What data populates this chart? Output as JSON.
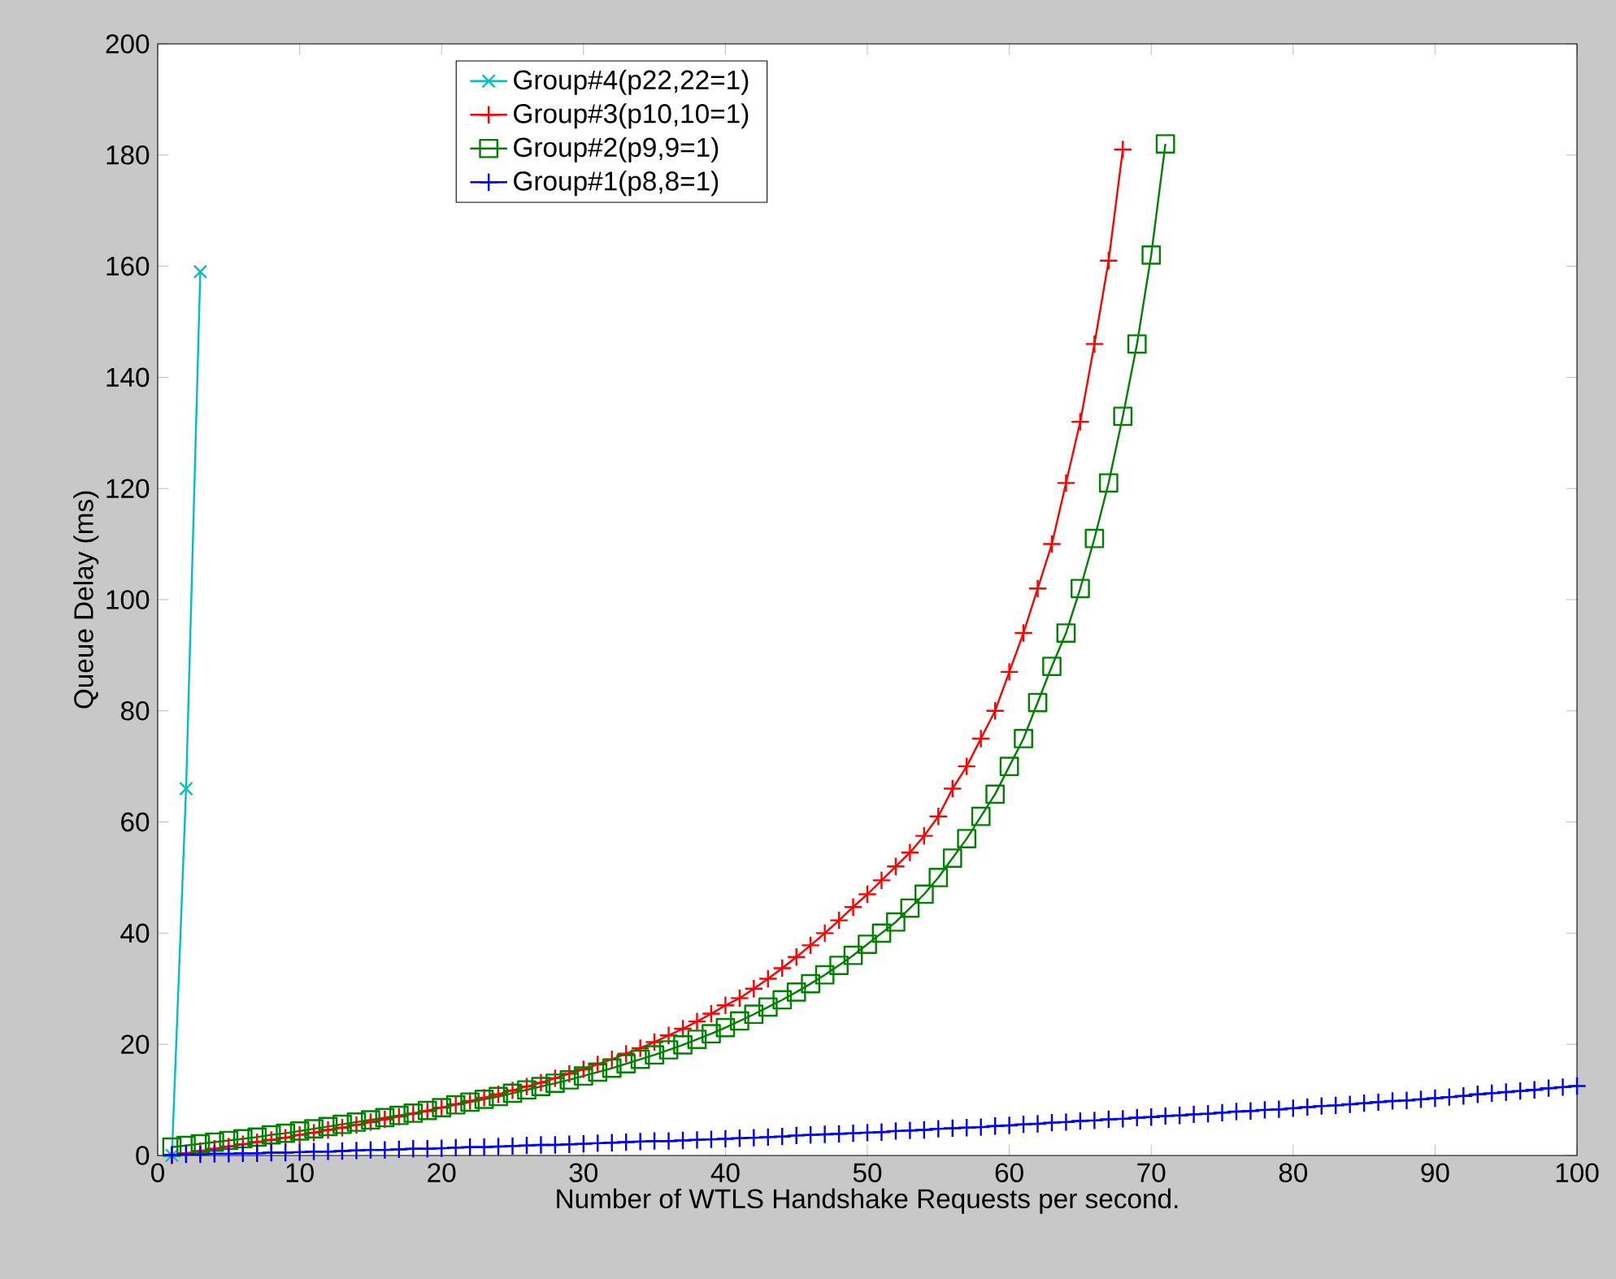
{
  "chart_data": {
    "type": "line",
    "xlabel": "Number of WTLS Handshake Requests per second.",
    "ylabel": "Queue Delay (ms)",
    "xlim": [
      0,
      100
    ],
    "ylim": [
      0,
      200
    ],
    "xticks": [
      0,
      10,
      20,
      30,
      40,
      50,
      60,
      70,
      80,
      90,
      100
    ],
    "yticks": [
      0,
      20,
      40,
      60,
      80,
      100,
      120,
      140,
      160,
      180,
      200
    ],
    "grid": false,
    "legend": "top",
    "line_style": "solid",
    "series": [
      {
        "name": "Group#4(p22,22=1)",
        "color": "#00bfbf",
        "marker": "x",
        "x": [
          1,
          2,
          3
        ],
        "values": [
          0,
          66,
          159
        ]
      },
      {
        "name": "Group#3(p10,10=1)",
        "color": "#ff0000",
        "marker": "cross",
        "x": [
          1,
          2,
          3,
          4,
          5,
          6,
          7,
          8,
          9,
          10,
          11,
          12,
          13,
          14,
          15,
          16,
          17,
          18,
          19,
          20,
          21,
          22,
          23,
          24,
          25,
          26,
          27,
          28,
          29,
          30,
          31,
          32,
          33,
          34,
          35,
          36,
          37,
          38,
          39,
          40,
          41,
          42,
          43,
          44,
          45,
          46,
          47,
          48,
          49,
          50,
          51,
          52,
          53,
          54,
          55,
          56,
          57,
          58,
          59,
          60,
          61,
          62,
          63,
          64,
          65,
          66,
          67,
          68
        ],
        "values": [
          0,
          0.4,
          0.8,
          1.2,
          1.6,
          2,
          2.4,
          2.8,
          3.2,
          3.7,
          4.1,
          4.6,
          5,
          5.5,
          6,
          6.5,
          7,
          7.5,
          8,
          8.6,
          9.2,
          9.8,
          10.4,
          11,
          11.7,
          12.4,
          13.1,
          13.9,
          14.7,
          15.5,
          16.4,
          17.3,
          18.3,
          19.3,
          20.4,
          21.6,
          22.8,
          24.1,
          25.5,
          27,
          28.3,
          30,
          31.8,
          33.7,
          35.7,
          37.8,
          40,
          42.3,
          44.7,
          47,
          49.5,
          52,
          54.5,
          57.5,
          61,
          66,
          70,
          75,
          80,
          87,
          94,
          102,
          110,
          121,
          132,
          146,
          161,
          181
        ]
      },
      {
        "name": "Group#2(p9,9=1)",
        "color": "#008000",
        "marker": "square",
        "x": [
          1,
          2,
          3,
          4,
          5,
          6,
          7,
          8,
          9,
          10,
          11,
          12,
          13,
          14,
          15,
          16,
          17,
          18,
          19,
          20,
          21,
          22,
          23,
          24,
          25,
          26,
          27,
          28,
          29,
          30,
          31,
          32,
          33,
          34,
          35,
          36,
          37,
          38,
          39,
          40,
          41,
          42,
          43,
          44,
          45,
          46,
          47,
          48,
          49,
          50,
          51,
          52,
          53,
          54,
          55,
          56,
          57,
          58,
          59,
          60,
          61,
          62,
          63,
          64,
          65,
          66,
          67,
          68,
          69,
          70,
          71
        ],
        "values": [
          1.5,
          1.8,
          2.1,
          2.4,
          2.7,
          3,
          3.3,
          3.7,
          4,
          4.4,
          4.8,
          5.2,
          5.6,
          6,
          6.4,
          6.8,
          7.2,
          7.6,
          8.1,
          8.6,
          9.1,
          9.6,
          10.1,
          10.6,
          11.2,
          11.8,
          12.4,
          13,
          13.6,
          14.3,
          15,
          15.7,
          16.5,
          17.3,
          18.1,
          19,
          19.9,
          20.9,
          21.9,
          23,
          24.2,
          25.4,
          26.7,
          28,
          29.4,
          30.9,
          32.5,
          34.2,
          36,
          38,
          40,
          42,
          44.5,
          47,
          50,
          53.5,
          57,
          61,
          65,
          70,
          75,
          81.5,
          88,
          94,
          102,
          111,
          121,
          133,
          146,
          162,
          182
        ]
      },
      {
        "name": "Group#1(p8,8=1)",
        "color": "#0000ff",
        "marker": "cross",
        "x": [
          1,
          2,
          3,
          4,
          5,
          6,
          7,
          8,
          9,
          10,
          11,
          12,
          13,
          14,
          15,
          16,
          17,
          18,
          19,
          20,
          21,
          22,
          23,
          24,
          25,
          26,
          27,
          28,
          29,
          30,
          31,
          32,
          33,
          34,
          35,
          36,
          37,
          38,
          39,
          40,
          41,
          42,
          43,
          44,
          45,
          46,
          47,
          48,
          49,
          50,
          51,
          52,
          53,
          54,
          55,
          56,
          57,
          58,
          59,
          60,
          61,
          62,
          63,
          64,
          65,
          66,
          67,
          68,
          69,
          70,
          71,
          72,
          73,
          74,
          75,
          76,
          77,
          78,
          79,
          80,
          81,
          82,
          83,
          84,
          85,
          86,
          87,
          88,
          89,
          90,
          91,
          92,
          93,
          94,
          95,
          96,
          97,
          98,
          99,
          100
        ],
        "values": [
          0.1,
          0.2,
          0.2,
          0.3,
          0.3,
          0.4,
          0.4,
          0.5,
          0.5,
          0.6,
          0.7,
          0.7,
          0.8,
          0.9,
          1,
          1,
          1.1,
          1.2,
          1.2,
          1.3,
          1.4,
          1.5,
          1.5,
          1.6,
          1.7,
          1.8,
          1.9,
          1.9,
          2,
          2.1,
          2.2,
          2.3,
          2.4,
          2.5,
          2.6,
          2.6,
          2.7,
          2.8,
          2.9,
          3,
          3.1,
          3.2,
          3.3,
          3.4,
          3.6,
          3.7,
          3.8,
          3.9,
          4,
          4.1,
          4.2,
          4.4,
          4.5,
          4.6,
          4.8,
          4.9,
          5,
          5.1,
          5.3,
          5.4,
          5.6,
          5.7,
          5.9,
          6,
          6.2,
          6.3,
          6.5,
          6.6,
          6.8,
          6.9,
          7.1,
          7.2,
          7.4,
          7.5,
          7.7,
          7.9,
          8,
          8.2,
          8.3,
          8.5,
          8.7,
          8.9,
          9,
          9.2,
          9.4,
          9.6,
          9.8,
          9.9,
          10.1,
          10.3,
          10.5,
          10.7,
          11,
          11.2,
          11.4,
          11.6,
          11.8,
          12.1,
          12.3,
          12.5
        ]
      }
    ]
  }
}
